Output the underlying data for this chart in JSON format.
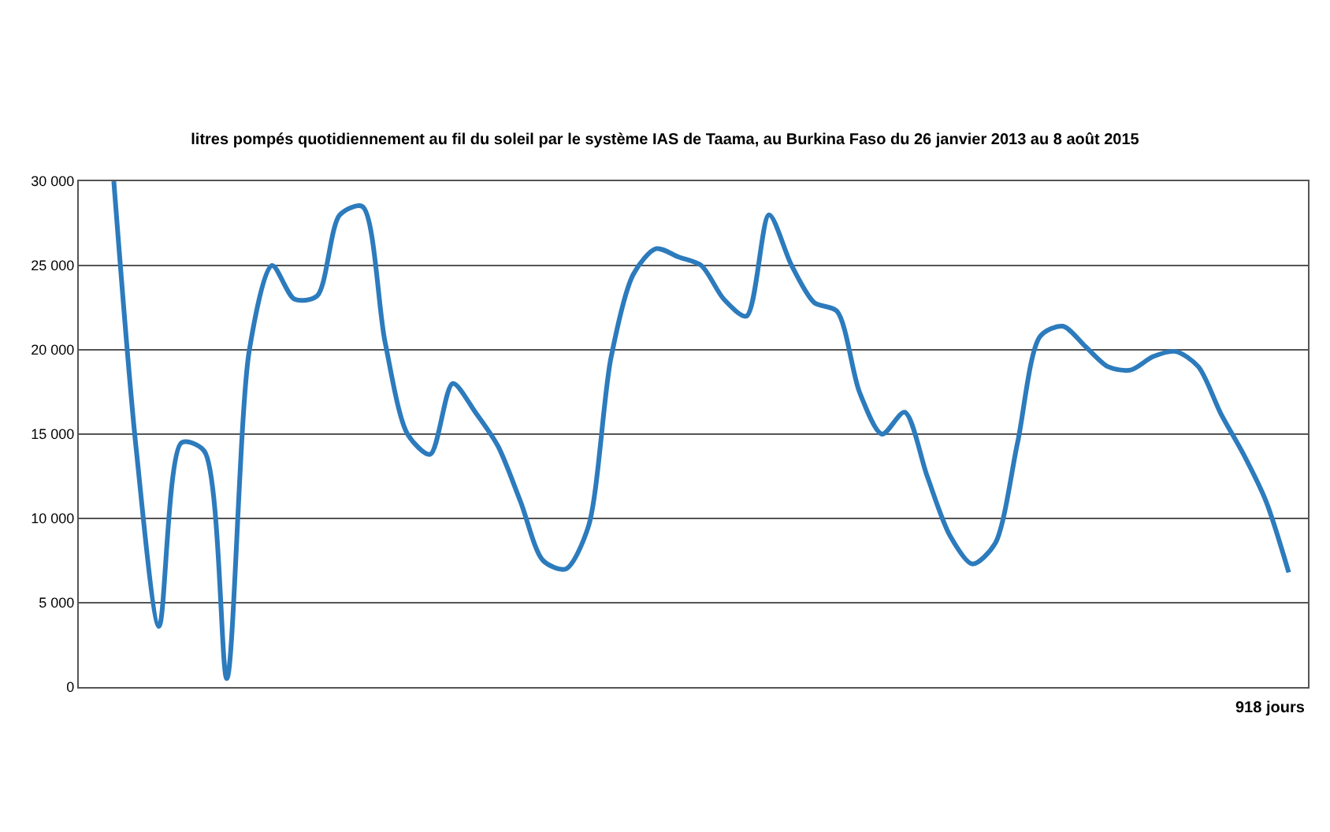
{
  "chart_data": {
    "type": "line",
    "title": "litres pompés quotidiennement au fil du soleil par le système IAS de Taama, au Burkina Faso du 26 janvier 2013 au 8 août 2015",
    "categories": [
      null,
      null,
      null,
      null,
      null,
      null,
      null,
      null,
      null,
      null,
      null,
      null,
      null,
      null,
      null,
      null,
      null,
      null,
      null,
      null,
      null,
      null,
      null,
      null,
      null,
      null,
      null,
      null,
      null,
      null,
      null,
      null,
      null,
      null,
      null,
      null,
      null,
      null,
      null,
      null,
      null,
      null,
      null,
      null,
      null,
      null,
      null,
      null,
      null,
      null,
      null,
      null,
      null
    ],
    "series": [
      {
        "color": "#2c7bbd",
        "values": [
          30000,
          14000,
          3600,
          14500,
          14000,
          500,
          20000,
          25000,
          23000,
          23200,
          28000,
          28500,
          20500,
          15000,
          13800,
          18000,
          16300,
          14300,
          11000,
          7500,
          7000,
          9500,
          19500,
          24500,
          26000,
          25500,
          25000,
          23000,
          22000,
          28000,
          25000,
          22800,
          22300,
          17500,
          15000,
          16300,
          12500,
          9000,
          7300,
          8500,
          14500,
          20800,
          21400,
          20200,
          19000,
          18800,
          19600,
          19900,
          19000,
          16200,
          13800,
          11000,
          6800
        ]
      }
    ],
    "ylim": [
      0,
      30000
    ],
    "yticks": [
      {
        "value": 0,
        "label": "0"
      },
      {
        "value": 5000,
        "label": "5 000"
      },
      {
        "value": 10000,
        "label": "10 000"
      },
      {
        "value": 15000,
        "label": "15 000"
      },
      {
        "value": 20000,
        "label": "20 000"
      },
      {
        "value": 25000,
        "label": "25 000"
      },
      {
        "value": 30000,
        "label": "30 000"
      }
    ],
    "grid": "y",
    "marker": "none",
    "line_style": "solid",
    "tick_labels": "y",
    "annotations": [
      "918 jours"
    ]
  }
}
